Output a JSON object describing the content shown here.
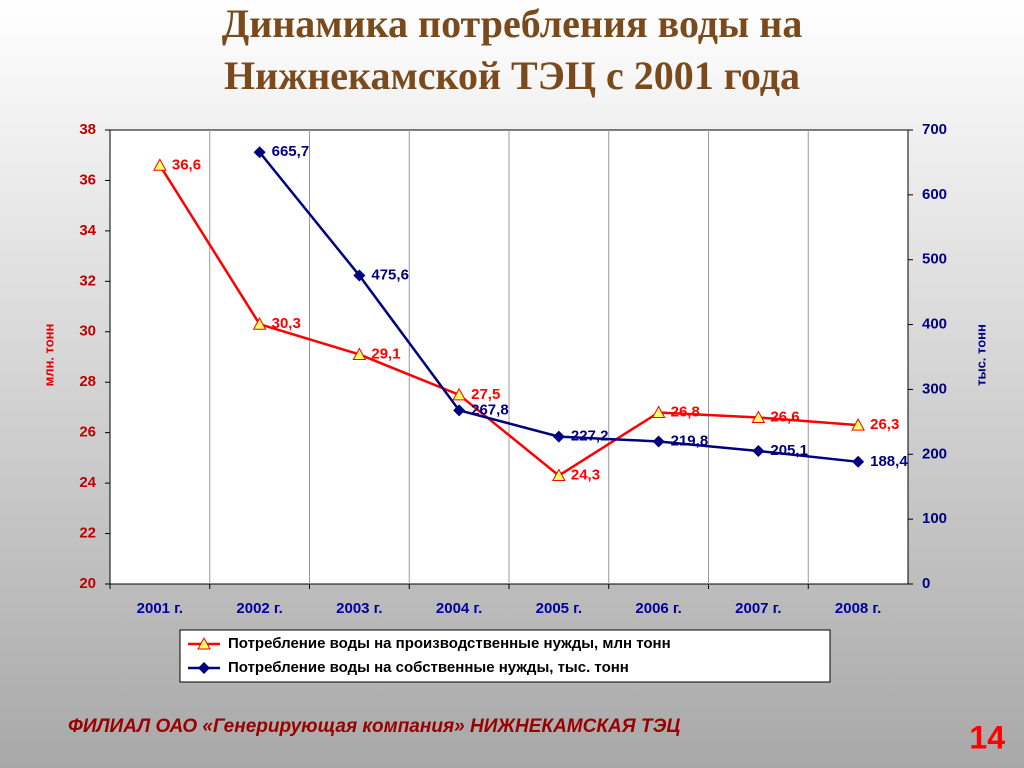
{
  "chart_data": {
    "type": "line",
    "title": "Динамика потребления воды на Нижнекамской ТЭЦ с 2001 года",
    "ylabel": "млн. тонн",
    "y2label": "тыс. тонн",
    "categories": [
      "2001 г.",
      "2002 г.",
      "2003 г.",
      "2004 г.",
      "2005 г.",
      "2006 г.",
      "2007 г.",
      "2008 г."
    ],
    "series": [
      {
        "name": "Потребление воды на производственные нужды, млн тонн",
        "color": "#ff0000",
        "marker_color": "#ffff66",
        "values": [
          36.6,
          30.3,
          29.1,
          27.5,
          24.3,
          26.8,
          26.6,
          26.3
        ],
        "value_labels": [
          "36,6",
          "30,3",
          "29,1",
          "27,5",
          "24,3",
          "26,8",
          "26,6",
          "26,3"
        ]
      },
      {
        "name": "Потребление воды на собственные нужды, тыс. тонн",
        "color": "#000080",
        "axis": "y2",
        "values": [
          null,
          665.7,
          475.6,
          267.8,
          227.2,
          219.8,
          205.1,
          188.4
        ],
        "value_labels": [
          null,
          "665,7",
          "475,6",
          "267,8",
          "227,2",
          "219,8",
          "205,1",
          "188,4"
        ]
      }
    ],
    "ylim": [
      20,
      38
    ],
    "yticks": [
      20,
      22,
      24,
      26,
      28,
      30,
      32,
      34,
      36,
      38
    ],
    "y2lim": [
      0,
      700
    ],
    "y2ticks": [
      0,
      100,
      200,
      300,
      400,
      500,
      600,
      700
    ],
    "legend": "bottom"
  },
  "footer": "ФИЛИАЛ ОАО «Генерирующая компания» НИЖНЕКАМСКАЯ ТЭЦ",
  "page_number": "14"
}
